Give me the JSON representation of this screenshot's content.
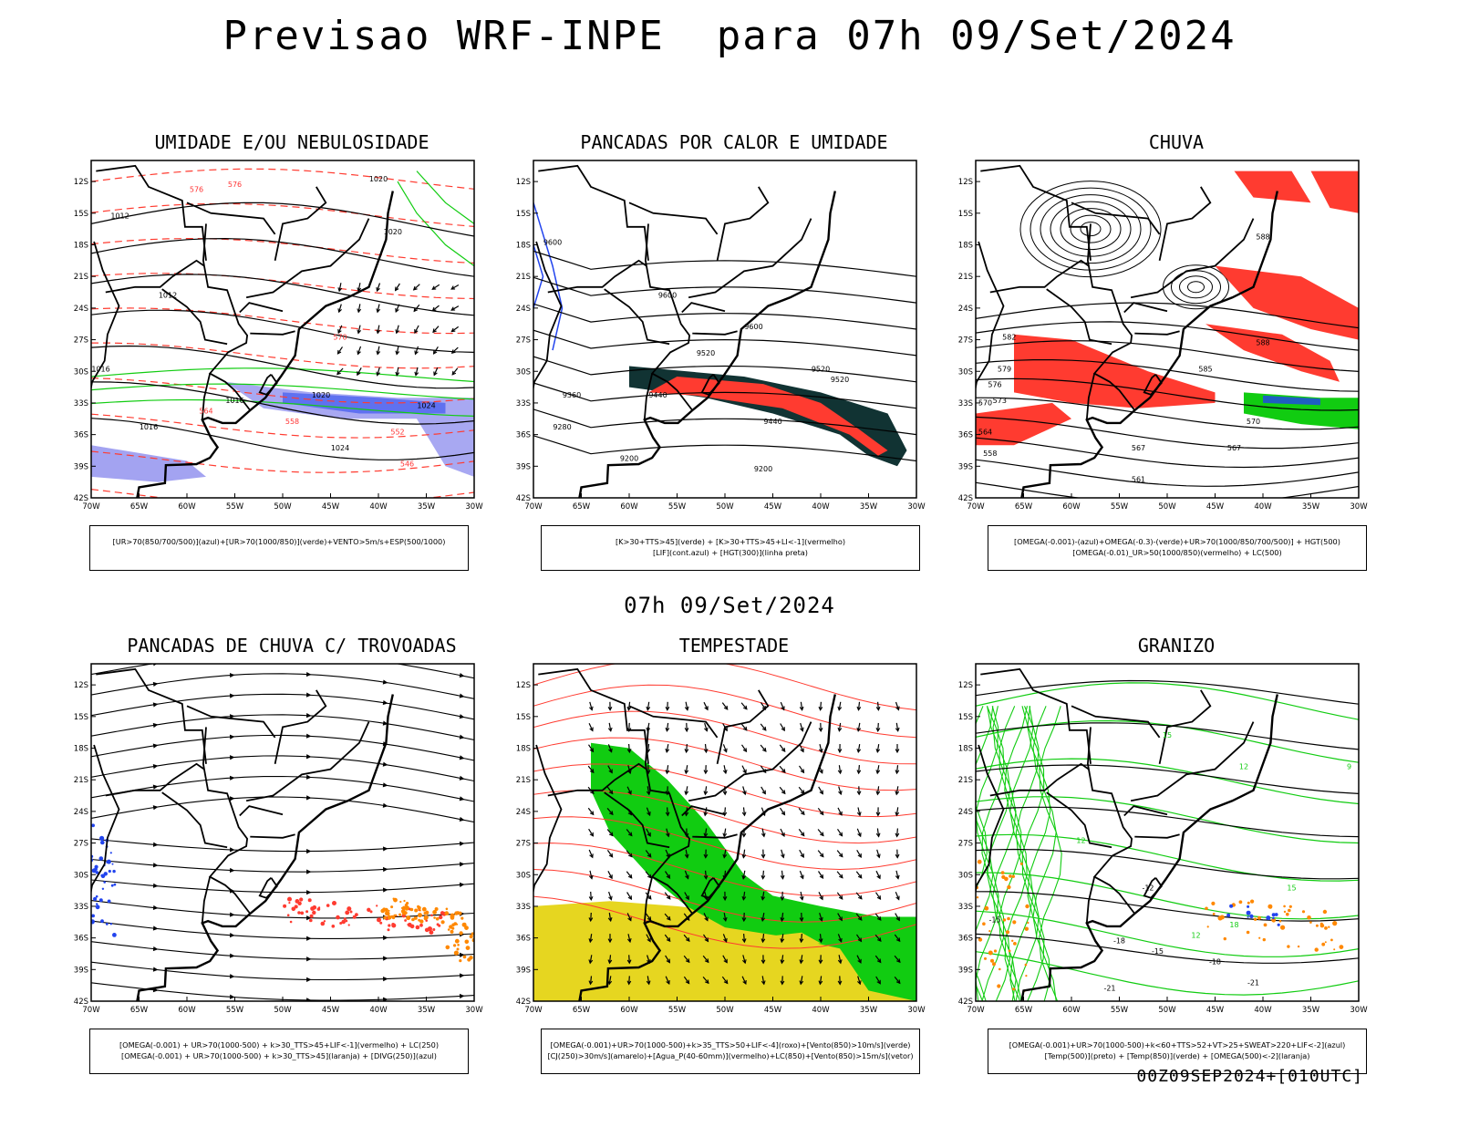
{
  "header": {
    "title": "Previsao WRF-INPE  para 07h 09/Set/2024",
    "mid_date": "07h 09/Set/2024",
    "footer": "00Z09SEP2024+[010UTC]"
  },
  "axes": {
    "lat_labels": [
      "12S",
      "15S",
      "18S",
      "21S",
      "24S",
      "27S",
      "30S",
      "33S",
      "36S",
      "39S",
      "42S"
    ],
    "lon_labels": [
      "70W",
      "65W",
      "60W",
      "55W",
      "50W",
      "45W",
      "40W",
      "35W",
      "30W"
    ]
  },
  "colors": {
    "contour_black": "#000000",
    "red": "#ff3b30",
    "green": "#11cc11",
    "blue": "#2244ee",
    "lavender": "#9999f0",
    "darkteal": "#113333",
    "yellow": "#e6d620",
    "orange": "#ff8800",
    "lightgreen": "#44dd44"
  },
  "chart_data": [
    {
      "type": "contour_map",
      "title": "UMIDADE E/OU NEBULOSIDADE",
      "legend_lines": [
        "[UR>70(850/700/500)](azul)+[UR>70(1000/850)](verde)+VENTO>5m/s+ESP(500/1000)"
      ],
      "contour_labels": [
        "1012",
        "1012",
        "1016",
        "1016",
        "1020",
        "1020",
        "1020",
        "1024",
        "1024",
        "1016",
        "576",
        "576",
        "570",
        "564",
        "558",
        "552",
        "546"
      ],
      "xlim": [
        -70,
        -30
      ],
      "ylim": [
        -42,
        -10
      ]
    },
    {
      "type": "contour_map",
      "title": "PANCADAS POR CALOR E UMIDADE",
      "legend_lines": [
        "[K>30+TTS>45](verde) + [K>30+TTS>45+LI<-1](vermelho)",
        "[LIF](cont.azul) + [HGT(300)](linha preta)"
      ],
      "contour_labels": [
        "9600",
        "9520",
        "9600",
        "9440",
        "9520",
        "9360",
        "9280",
        "9200",
        "9200",
        "9440",
        "9520",
        "9600"
      ],
      "xlim": [
        -70,
        -30
      ],
      "ylim": [
        -42,
        -10
      ]
    },
    {
      "type": "contour_map",
      "title": "CHUVA",
      "legend_lines": [
        "[OMEGA(-0.001)-(azul)+OMEGA(-0.3)-(verde)+UR>70(1000/850/700/500)] + HGT(500)",
        "[OMEGA(-0.01)_UR>50(1000/850)(vermelho) + LC(500)"
      ],
      "contour_labels": [
        "588",
        "582",
        "579",
        "576",
        "573",
        "570",
        "564",
        "567",
        "570",
        "567",
        "561",
        "558",
        "585",
        "588"
      ],
      "xlim": [
        -70,
        -30
      ],
      "ylim": [
        -42,
        -10
      ]
    },
    {
      "type": "streamline_map",
      "title": "PANCADAS DE CHUVA C/ TROVOADAS",
      "legend_lines": [
        "[OMEGA(-0.001) + UR>70(1000-500) + k>30_TTS>45+LIF<-1](vermelho) + LC(250)",
        "[OMEGA(-0.001) + UR>70(1000-500) + k>30_TTS>45](laranja) + [DIVG(250)](azul)"
      ],
      "contour_labels": [],
      "xlim": [
        -70,
        -30
      ],
      "ylim": [
        -42,
        -10
      ]
    },
    {
      "type": "streamline_map",
      "title": "TEMPESTADE",
      "legend_lines": [
        "[OMEGA(-0.001)+UR>70(1000-500)+k>35_TTS>50+LIF<-4](roxo)+[Vento(850)>10m/s](verde)",
        "[CJ(250)>30m/s](amarelo)+[Agua_P(40-60mm)](vermelho)+LC(850)+[Vento(850)>15m/s](vetor)"
      ],
      "contour_labels": [],
      "xlim": [
        -70,
        -30
      ],
      "ylim": [
        -42,
        -10
      ]
    },
    {
      "type": "contour_map",
      "title": "GRANIZO",
      "legend_lines": [
        "[OMEGA(-0.001)+UR>70(1000-500)+k<60+TTS>52+VT>25+SWEAT>220+LIF<-2](azul)",
        "[Temp(500)](preto) + [Temp(850)](verde) + [OMEGA(500)<-2](laranja)"
      ],
      "contour_labels": [
        "-12",
        "-15",
        "-15",
        "-18",
        "-18",
        "-21",
        "-21",
        "12",
        "12",
        "15",
        "15",
        "18",
        "12",
        "9"
      ],
      "xlim": [
        -70,
        -30
      ],
      "ylim": [
        -42,
        -10
      ]
    }
  ]
}
